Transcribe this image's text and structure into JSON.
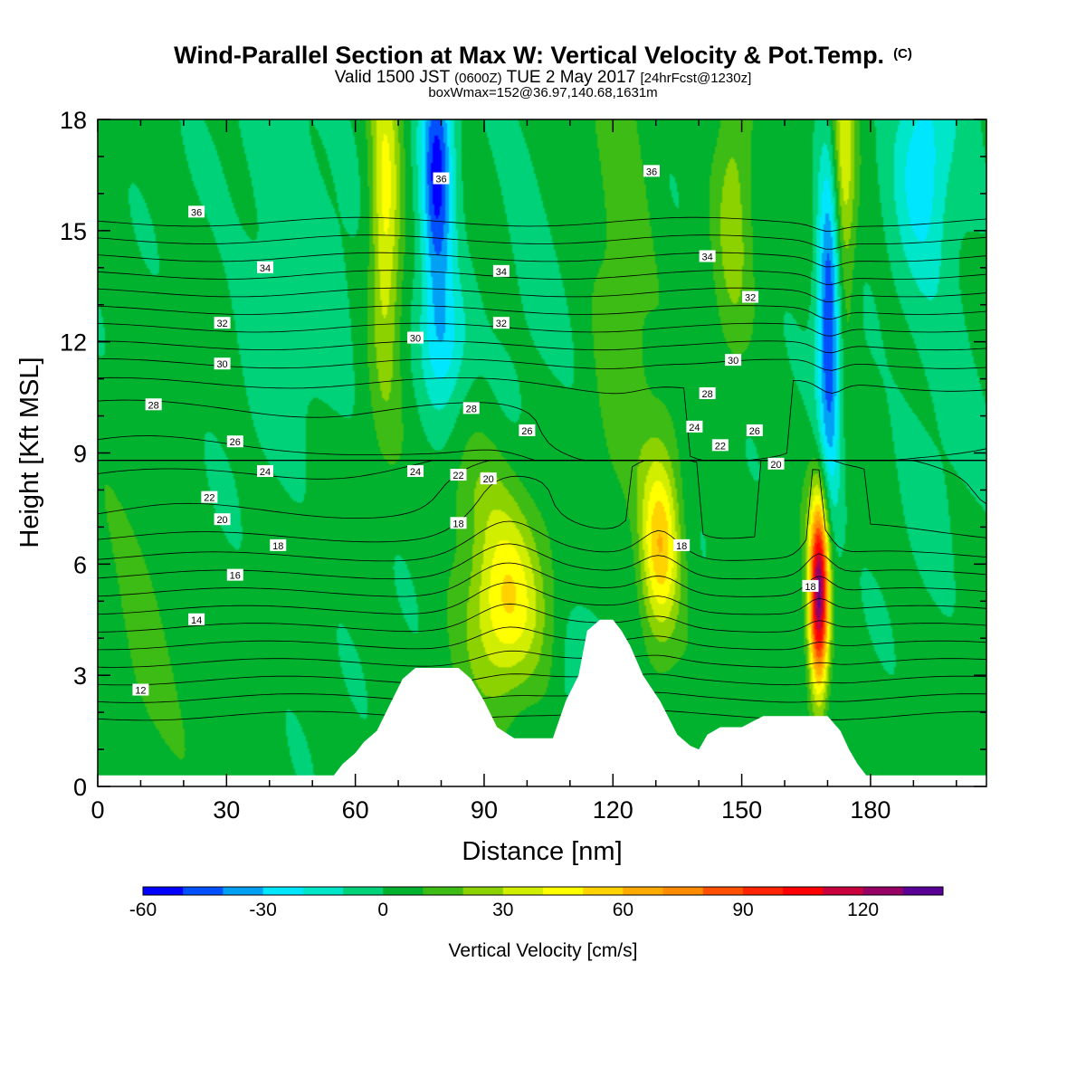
{
  "chart_data": {
    "type": "heatmap",
    "title": "Wind-Parallel Section at Max W: Vertical Velocity & Pot.Temp.",
    "copyright": "(C)",
    "subtitle_main": "Valid 1500 JST",
    "subtitle_utc": "(0600Z)",
    "subtitle_date": "TUE 2 May 2017",
    "subtitle_fcst": "[24hrFcst@1230z]",
    "subtitle2": "boxWmax=152@36.97,140.68,1631m",
    "xlabel": "Distance [nm]",
    "ylabel": "Height [Kft MSL]",
    "xlim": [
      0,
      207
    ],
    "ylim": [
      0,
      18
    ],
    "x_ticks": [
      "0",
      "30",
      "60",
      "90",
      "120",
      "150",
      "180"
    ],
    "x_tick_values": [
      0,
      30,
      60,
      90,
      120,
      150,
      180
    ],
    "y_ticks": [
      "0",
      "3",
      "6",
      "9",
      "12",
      "15",
      "18"
    ],
    "y_tick_values": [
      0,
      3,
      6,
      9,
      12,
      15,
      18
    ],
    "colorbar": {
      "label": "Vertical Velocity [cm/s]",
      "min": -60,
      "max": 140,
      "step": 10,
      "tick_labels": [
        "-60",
        "-30",
        "0",
        "30",
        "60",
        "90",
        "120"
      ],
      "tick_values": [
        -60,
        -30,
        0,
        30,
        60,
        90,
        120
      ],
      "colors": [
        "#0000ff",
        "#0050ff",
        "#00a0f5",
        "#00e6ff",
        "#00e6c8",
        "#00d27a",
        "#00b22e",
        "#3cbc14",
        "#8cd200",
        "#d2ee00",
        "#ffff00",
        "#ffd200",
        "#ffaa00",
        "#ff8c00",
        "#ff5000",
        "#ff2300",
        "#ff0000",
        "#c8003c",
        "#960064",
        "#5a0096"
      ]
    },
    "updrafts_cm_s": [
      {
        "x": 95,
        "z": 5.0,
        "w": 45
      },
      {
        "x": 131,
        "z": 6.5,
        "w": 55
      },
      {
        "x": 168,
        "z": 5.2,
        "w": 130
      },
      {
        "x": 67,
        "z": 16.0,
        "w": 40
      },
      {
        "x": 173,
        "z": 16.0,
        "w": 40
      }
    ],
    "downdrafts_cm_s": [
      {
        "x": 79,
        "z": 16.0,
        "w": -50
      },
      {
        "x": 170,
        "z": 12.0,
        "w": -55
      }
    ],
    "terrain_kft": {
      "x": [
        0,
        55,
        57,
        60,
        62,
        65,
        68,
        71,
        74,
        79,
        84,
        87,
        90,
        93,
        97,
        102,
        106,
        109,
        112,
        114,
        117,
        120,
        122,
        124,
        127,
        131,
        135,
        138,
        140,
        142,
        145,
        150,
        155,
        160,
        165,
        170,
        173,
        175,
        177,
        179,
        181,
        184,
        207
      ],
      "z": [
        0.3,
        0.3,
        0.6,
        0.9,
        1.2,
        1.5,
        2.2,
        2.9,
        3.2,
        3.2,
        3.2,
        2.9,
        2.3,
        1.6,
        1.3,
        1.3,
        1.3,
        2.3,
        3.0,
        4.2,
        4.5,
        4.5,
        4.2,
        3.8,
        3.0,
        2.3,
        1.4,
        1.1,
        1.0,
        1.4,
        1.6,
        1.6,
        1.9,
        1.9,
        1.9,
        1.9,
        1.5,
        1.0,
        0.6,
        0.3,
        0.3,
        0.3,
        0.3
      ]
    },
    "theta_labels_C": [
      {
        "text": "12",
        "x": 10,
        "z": 2.6
      },
      {
        "text": "14",
        "x": 23,
        "z": 4.5
      },
      {
        "text": "16",
        "x": 32,
        "z": 5.7
      },
      {
        "text": "18",
        "x": 42,
        "z": 6.5
      },
      {
        "text": "20",
        "x": 29,
        "z": 7.2
      },
      {
        "text": "22",
        "x": 26,
        "z": 7.8
      },
      {
        "text": "24",
        "x": 39,
        "z": 8.5
      },
      {
        "text": "26",
        "x": 32,
        "z": 9.3
      },
      {
        "text": "28",
        "x": 13,
        "z": 10.3
      },
      {
        "text": "30",
        "x": 29,
        "z": 11.4
      },
      {
        "text": "32",
        "x": 29,
        "z": 12.5
      },
      {
        "text": "34",
        "x": 39,
        "z": 14.0
      },
      {
        "text": "36",
        "x": 23,
        "z": 15.5
      },
      {
        "text": "30",
        "x": 74,
        "z": 12.1
      },
      {
        "text": "24",
        "x": 74,
        "z": 8.5
      },
      {
        "text": "22",
        "x": 84,
        "z": 8.4
      },
      {
        "text": "20",
        "x": 91,
        "z": 8.3
      },
      {
        "text": "18",
        "x": 84,
        "z": 7.1
      },
      {
        "text": "28",
        "x": 87,
        "z": 10.2
      },
      {
        "text": "26",
        "x": 100,
        "z": 9.6
      },
      {
        "text": "32",
        "x": 94,
        "z": 12.5
      },
      {
        "text": "34",
        "x": 94,
        "z": 13.9
      },
      {
        "text": "36",
        "x": 80,
        "z": 16.4
      },
      {
        "text": "36",
        "x": 129,
        "z": 16.6
      },
      {
        "text": "34",
        "x": 142,
        "z": 14.3
      },
      {
        "text": "32",
        "x": 152,
        "z": 13.2
      },
      {
        "text": "30",
        "x": 148,
        "z": 11.5
      },
      {
        "text": "28",
        "x": 142,
        "z": 10.6
      },
      {
        "text": "24",
        "x": 139,
        "z": 9.7
      },
      {
        "text": "26",
        "x": 153,
        "z": 9.6
      },
      {
        "text": "22",
        "x": 145,
        "z": 9.2
      },
      {
        "text": "20",
        "x": 158,
        "z": 8.7
      },
      {
        "text": "18",
        "x": 136,
        "z": 6.5
      },
      {
        "text": "18",
        "x": 166,
        "z": 5.4
      }
    ]
  }
}
